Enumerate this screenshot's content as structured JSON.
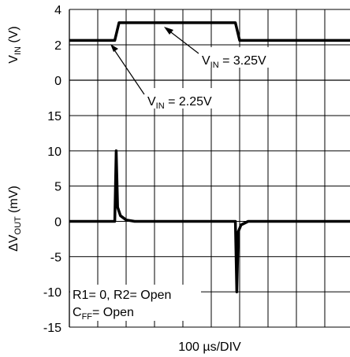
{
  "chart_data": {
    "type": "line",
    "x_scale_label": "100 µs/DIV",
    "x_range": [
      0,
      10
    ],
    "x_units": "div",
    "panels": [
      {
        "name": "input",
        "ylabel_main": "V",
        "ylabel_sub": "IN",
        "ylabel_unit": " (V)",
        "ylim": [
          0,
          4
        ],
        "yticks": [
          "4",
          "2",
          "0"
        ],
        "series": [
          {
            "x": [
              0,
              1.6,
              1.75,
              5.85,
              6.0,
              10
            ],
            "y": [
              2.25,
              2.25,
              3.25,
              3.25,
              2.25,
              2.25
            ]
          }
        ]
      },
      {
        "name": "output",
        "ylabel_main": "ΔV",
        "ylabel_sub": "OUT",
        "ylabel_unit": " (mV)",
        "ylim": [
          -15,
          15
        ],
        "yticks": [
          "15",
          "10",
          "5",
          "0",
          "-5",
          "-10",
          "-15"
        ],
        "series": [
          {
            "x": [
              0,
              1.6,
              1.65,
              1.7,
              1.8,
              2.0,
              2.3,
              5.85,
              5.9,
              5.95,
              6.05,
              6.3,
              10
            ],
            "y": [
              0,
              0,
              10,
              2,
              0.8,
              0.2,
              0,
              0,
              -10,
              -1.5,
              -0.5,
              0,
              0
            ]
          }
        ]
      }
    ],
    "grid": true
  },
  "annotations": {
    "vin_high": {
      "main": "V",
      "sub": "IN",
      "rest": " = 3.25V"
    },
    "vin_low": {
      "main": "V",
      "sub": "IN",
      "rest": " = 2.25V"
    },
    "conditions_line1": "R1= 0, R2= Open",
    "conditions_line2_main": "C",
    "conditions_line2_sub": "FF",
    "conditions_line2_rest": "= Open"
  }
}
